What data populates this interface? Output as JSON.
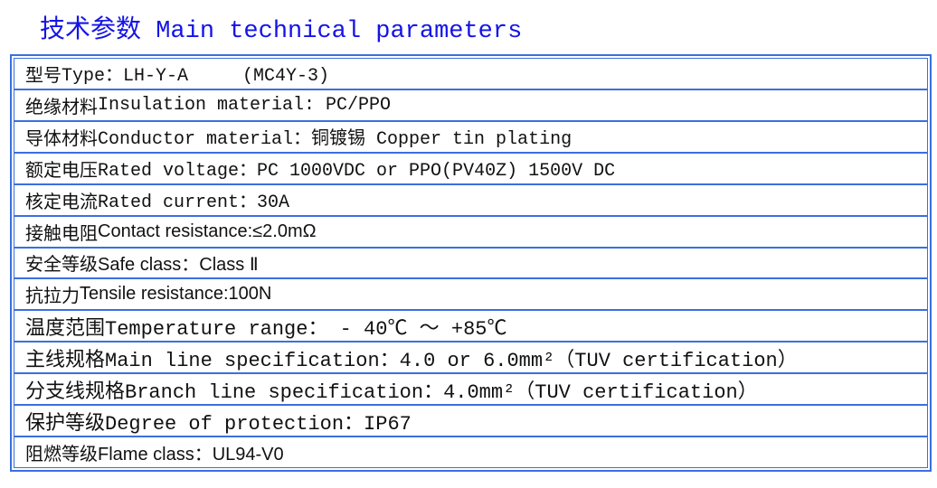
{
  "title": {
    "cn": "技术参数",
    "en": "Main technical parameters"
  },
  "accent_color": "#1414e6",
  "border_color": "#3a6fe0",
  "rows": [
    {
      "cn": "型号",
      "text": "Type：LH-Y-A     (MC4Y-3)",
      "font": "mono"
    },
    {
      "cn": "绝缘材料",
      "text": "Insulation material: PC/PPO",
      "font": "mono"
    },
    {
      "cn": "导体材料",
      "text": "Conductor material：铜镀锡 Copper tin plating",
      "font": "mono"
    },
    {
      "cn": "额定电压",
      "text": "Rated voltage：PC 1000VDC or PPO(PV40Z) 1500V DC",
      "font": "mono"
    },
    {
      "cn": "核定电流",
      "text": "Rated current：30A",
      "font": "mono"
    },
    {
      "cn": "接触电阻",
      "text": "Contact resistance:≤2.0mΩ",
      "font": "sans"
    },
    {
      "cn": "安全等级",
      "text": "Safe class：Class Ⅱ",
      "font": "sans"
    },
    {
      "cn": "抗拉力",
      "text": "Tensile resistance:100N",
      "font": "sans"
    },
    {
      "cn": "温度范围",
      "text": "Temperature range： - 40℃ ～ +85℃",
      "font": "mono"
    },
    {
      "cn": "主线规格",
      "text": "Main line specification：4.0 or 6.0mm²（TUV certification）",
      "font": "mono"
    },
    {
      "cn": "分支线规格",
      "text": "Branch line specification：4.0mm²（TUV certification）",
      "font": "mono"
    },
    {
      "cn": "保护等级",
      "text": "Degree of protection：IP67",
      "font": "mono"
    },
    {
      "cn": "阻燃等级",
      "text": "Flame class：UL94-V0",
      "font": "sans"
    }
  ]
}
